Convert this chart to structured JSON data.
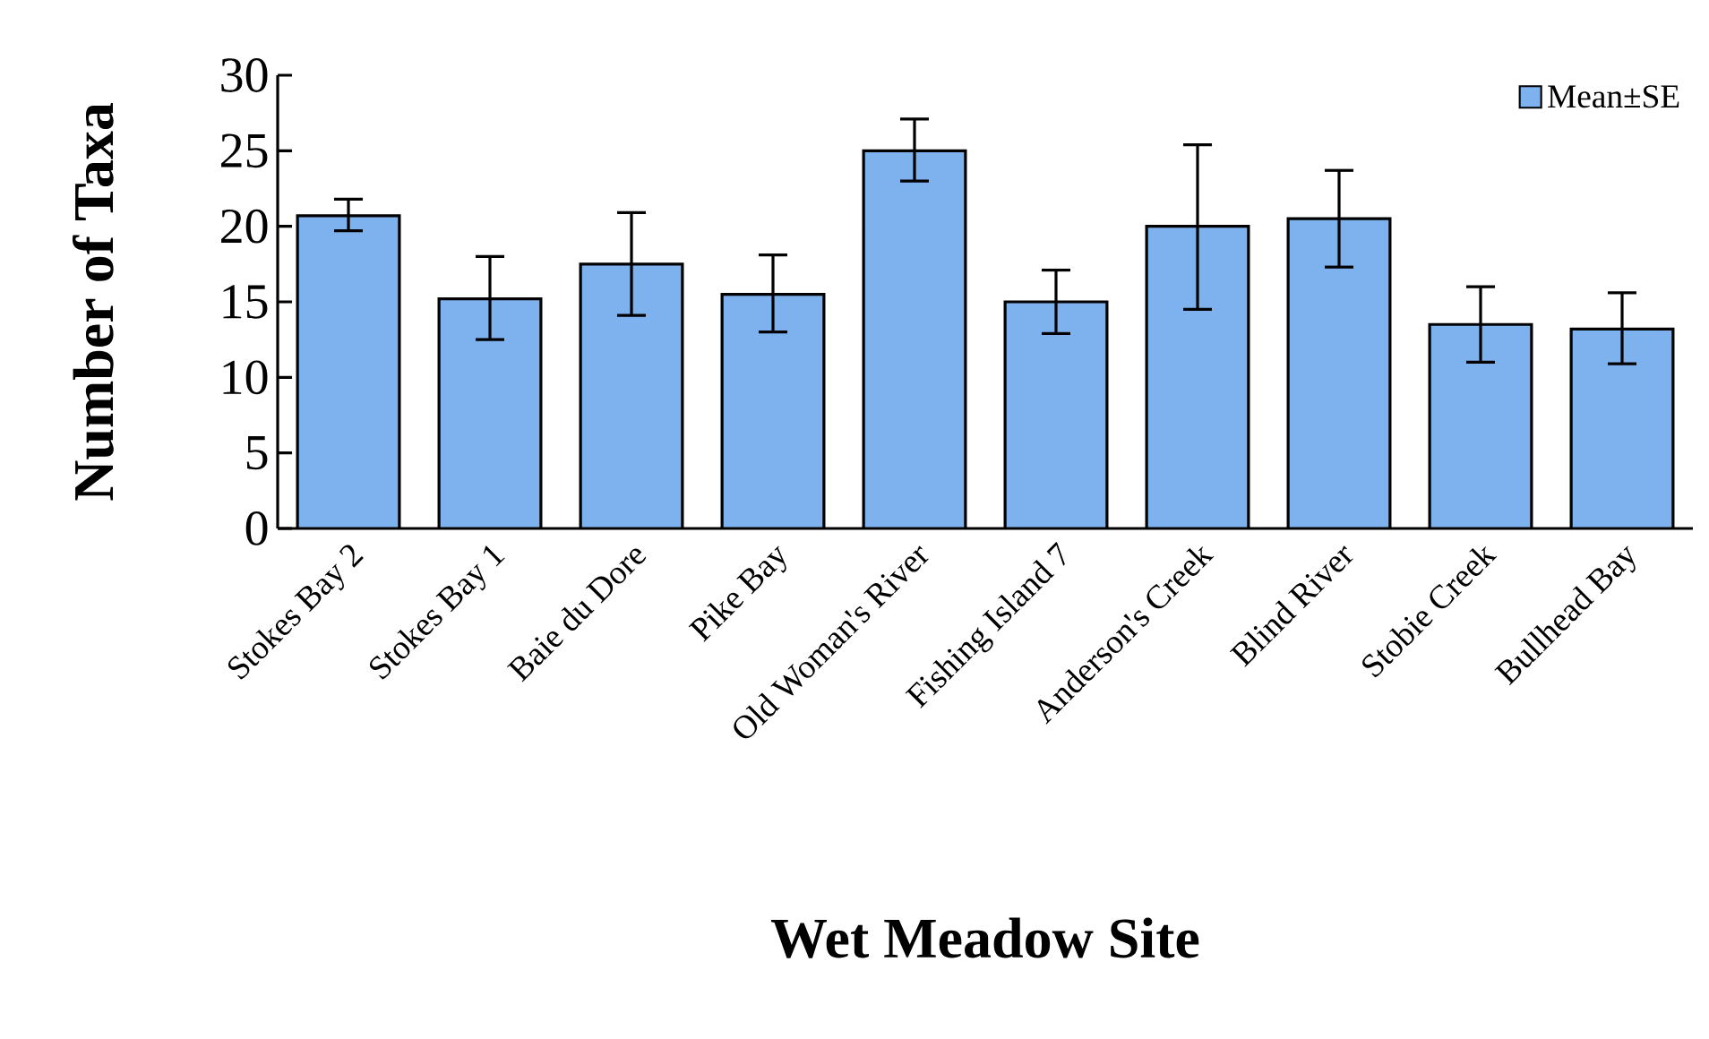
{
  "chart_data": {
    "type": "bar",
    "xlabel": "Wet Meadow Site",
    "ylabel": "Number of Taxa",
    "categories": [
      "Stokes Bay 2",
      "Stokes Bay 1",
      "Baie du Dore",
      "Pike Bay",
      "Old Woman's River",
      "Fishing Island 7",
      "Anderson's Creek",
      "Blind River",
      "Stobie Creek",
      "Bullhead Bay"
    ],
    "series": [
      {
        "name": "Mean±SE",
        "color": "#7eb2ee",
        "values": [
          20.7,
          15.2,
          17.5,
          15.5,
          25.0,
          15.0,
          20.0,
          20.5,
          13.5,
          13.2
        ],
        "errors": [
          [
            19.7,
            21.8
          ],
          [
            12.5,
            18.0
          ],
          [
            14.1,
            20.9
          ],
          [
            13.0,
            18.1
          ],
          [
            23.0,
            27.1
          ],
          [
            12.9,
            17.1
          ],
          [
            14.5,
            25.4
          ],
          [
            17.3,
            23.7
          ],
          [
            11.0,
            16.0
          ],
          [
            10.9,
            15.6
          ]
        ]
      }
    ],
    "ylim": [
      0,
      30
    ],
    "yticks": [
      0,
      5,
      10,
      15,
      20,
      25,
      30
    ],
    "grid": false,
    "legend": "top right"
  }
}
